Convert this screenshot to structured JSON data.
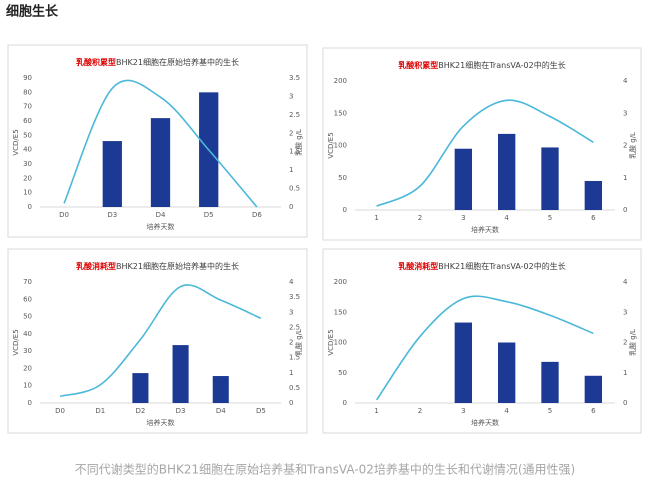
{
  "header": {
    "title": "细胞生长"
  },
  "caption": "不同代谢类型的BHK21细胞在原始培养基和TransVA-02培养基中的生长和代谢情况(通用性强)",
  "chart_data": [
    {
      "type": "bar",
      "title_tag": "乳酸积累型",
      "title": "BHK21细胞在原始培养基中的生长",
      "xlabel": "培养天数",
      "ylabel": "VCD/E5",
      "y2label": "乳酸 g/L",
      "categories": [
        "D0",
        "D3",
        "D4",
        "D5",
        "D6"
      ],
      "series": [
        {
          "type": "bar",
          "color": "#1c3a94",
          "values": [
            null,
            46,
            62,
            80,
            null
          ]
        },
        {
          "type": "line",
          "axis": "y2",
          "color": "#4bb8d9",
          "values": [
            0.1,
            3.22,
            2.98,
            1.55,
            0.0
          ]
        }
      ],
      "ylim": [
        0,
        90
      ],
      "yticks": [
        0,
        10,
        20,
        30,
        40,
        50,
        60,
        70,
        80,
        90
      ],
      "y2lim": [
        0,
        3.5
      ],
      "y2ticks": [
        0,
        0.5,
        1,
        1.5,
        2,
        2.5,
        3,
        3.5
      ]
    },
    {
      "type": "bar",
      "title_tag": "乳酸积累型",
      "title": "BHK21细胞在TransVA-02中的生长",
      "xlabel": "培养天数",
      "ylabel": "VCD/E5",
      "y2label": "乳酸 g/L",
      "categories": [
        "1",
        "2",
        "3",
        "4",
        "5",
        "6"
      ],
      "series": [
        {
          "type": "bar",
          "color": "#1c3a94",
          "values": [
            null,
            null,
            95,
            118,
            97,
            45
          ]
        },
        {
          "type": "line",
          "axis": "y2",
          "color": "#4bb8d9",
          "values": [
            0.12,
            0.74,
            2.6,
            3.4,
            2.9,
            2.1
          ]
        }
      ],
      "ylim": [
        0,
        200
      ],
      "yticks": [
        0,
        50,
        100,
        150,
        200
      ],
      "y2lim": [
        0,
        4
      ],
      "y2ticks": [
        0,
        1,
        2,
        3,
        4
      ]
    },
    {
      "type": "bar",
      "title_tag": "乳酸消耗型",
      "title": "BHK21细胞在原始培养基中的生长",
      "xlabel": "培养天数",
      "ylabel": "VCD/E5",
      "y2label": "乳酸 g/L",
      "categories": [
        "D0",
        "D1",
        "D2",
        "D3",
        "D4",
        "D5"
      ],
      "series": [
        {
          "type": "bar",
          "color": "#1c3a94",
          "values": [
            null,
            null,
            17.3,
            33.5,
            15.6,
            null
          ]
        },
        {
          "type": "line",
          "axis": "y2",
          "color": "#4bb8d9",
          "values": [
            0.22,
            0.6,
            2.1,
            3.85,
            3.4,
            2.8
          ]
        }
      ],
      "ylim": [
        0,
        70
      ],
      "yticks": [
        0,
        10,
        20,
        30,
        40,
        50,
        60,
        70
      ],
      "y2lim": [
        0,
        4
      ],
      "y2ticks": [
        0,
        0.5,
        1,
        1.5,
        2,
        2.5,
        3,
        3.5,
        4
      ]
    },
    {
      "type": "bar",
      "title_tag": "乳酸消耗型",
      "title": "BHK21细胞在TransVA-02中的生长",
      "xlabel": "培养天数",
      "ylabel": "VCD/E5",
      "y2label": "乳酸 g/L",
      "categories": [
        "1",
        "2",
        "3",
        "4",
        "5",
        "6"
      ],
      "series": [
        {
          "type": "bar",
          "color": "#1c3a94",
          "values": [
            null,
            null,
            133,
            100,
            68,
            45
          ]
        },
        {
          "type": "line",
          "axis": "y2",
          "color": "#4bb8d9",
          "values": [
            0.1,
            2.2,
            3.45,
            3.35,
            2.9,
            2.3
          ]
        }
      ],
      "ylim": [
        0,
        200
      ],
      "yticks": [
        0,
        50,
        100,
        150,
        200
      ],
      "y2lim": [
        0,
        4
      ],
      "y2ticks": [
        0,
        1,
        2,
        3,
        4
      ]
    }
  ]
}
